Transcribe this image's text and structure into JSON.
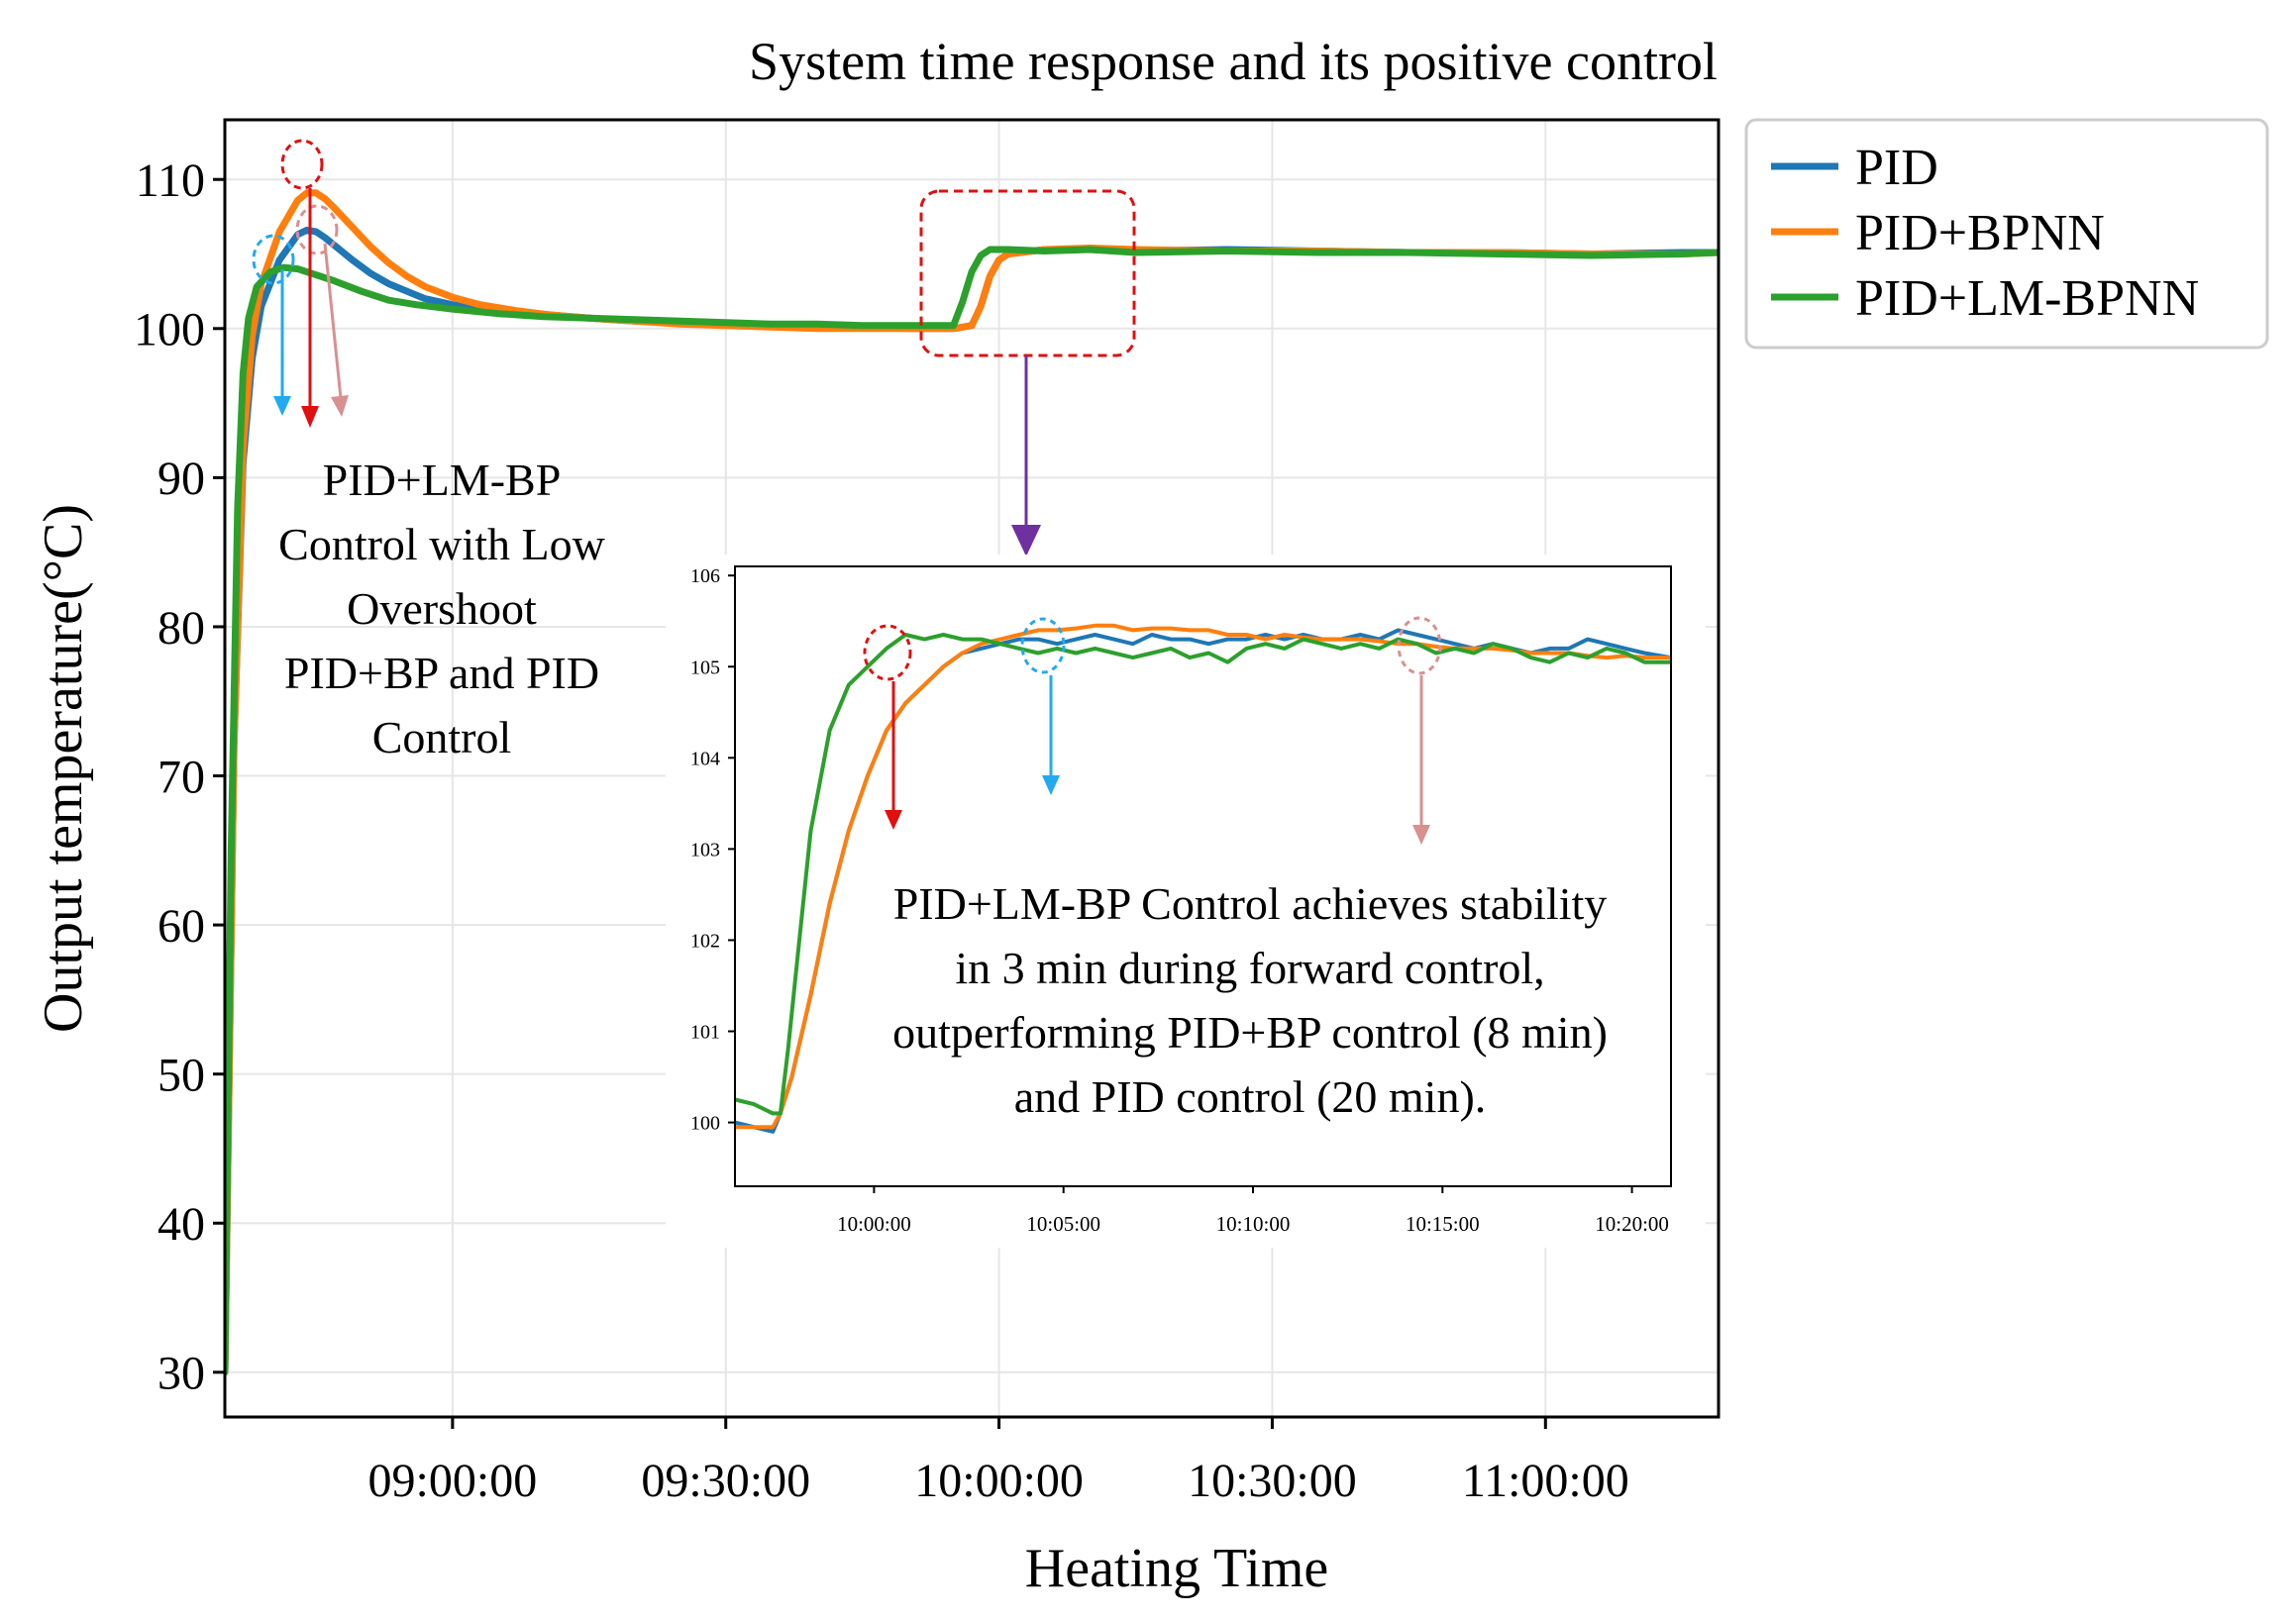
{
  "chart_data": [
    {
      "type": "line",
      "title": "System time response and its positive control",
      "xlabel": "Heating Time",
      "ylabel": "Output temperature(°C)",
      "x_unit": "minutes since 08:35:00",
      "xlim": [
        0,
        164
      ],
      "ylim": [
        27,
        114
      ],
      "yticks": [
        30,
        40,
        50,
        60,
        70,
        80,
        90,
        100,
        110
      ],
      "xticks": [
        {
          "x": 25,
          "label": "09:00:00"
        },
        {
          "x": 55,
          "label": "09:30:00"
        },
        {
          "x": 85,
          "label": "10:00:00"
        },
        {
          "x": 115,
          "label": "10:30:00"
        },
        {
          "x": 145,
          "label": "11:00:00"
        }
      ],
      "grid": true,
      "legend": {
        "position": "outside-top-right",
        "entries": [
          "PID",
          "PID+BPNN",
          "PID+LM-BPNN"
        ]
      },
      "series": [
        {
          "name": "PID",
          "color": "#1f77b4",
          "x": [
            0,
            1,
            2,
            3,
            4,
            6,
            8,
            9,
            10,
            11,
            12,
            14,
            16,
            18,
            20,
            22,
            25,
            28,
            32,
            36,
            40,
            45,
            50,
            55,
            60,
            65,
            70,
            75,
            80,
            82,
            83,
            84,
            85,
            86,
            90,
            95,
            100,
            110,
            120,
            130,
            140,
            150,
            160,
            164
          ],
          "y": [
            30,
            72,
            91,
            98,
            101.5,
            104.6,
            106.3,
            106.6,
            106.5,
            106.1,
            105.6,
            104.6,
            103.7,
            103,
            102.5,
            102,
            101.6,
            101.3,
            101.1,
            100.9,
            100.7,
            100.5,
            100.4,
            100.3,
            100.2,
            100.1,
            100.1,
            100,
            100,
            100.2,
            101.5,
            103.5,
            104.6,
            105,
            105.3,
            105.3,
            105.2,
            105.3,
            105.2,
            105.1,
            105.1,
            105,
            105.1,
            105.1
          ]
        },
        {
          "name": "PID+BPNN",
          "color": "#ff7f0e",
          "x": [
            0,
            1,
            2,
            3,
            4,
            6,
            8,
            9,
            10,
            11,
            12,
            14,
            16,
            18,
            20,
            22,
            25,
            28,
            32,
            36,
            40,
            45,
            50,
            55,
            60,
            65,
            70,
            75,
            80,
            82,
            83,
            84,
            85,
            86,
            90,
            95,
            100,
            110,
            120,
            130,
            140,
            150,
            160,
            164
          ],
          "y": [
            30,
            72,
            92,
            99.5,
            103,
            106.5,
            108.6,
            109.1,
            109.1,
            108.7,
            108.1,
            106.8,
            105.5,
            104.4,
            103.5,
            102.8,
            102.1,
            101.6,
            101.2,
            100.9,
            100.7,
            100.5,
            100.3,
            100.2,
            100.1,
            100,
            100,
            100,
            100,
            100.2,
            101.5,
            103.5,
            104.6,
            105,
            105.3,
            105.4,
            105.3,
            105.2,
            105.2,
            105.1,
            105.1,
            105,
            105,
            105.1
          ]
        },
        {
          "name": "PID+LM-BPNN",
          "color": "#2ca02c",
          "x": [
            0,
            0.7,
            1.4,
            2,
            2.6,
            3.5,
            5,
            6.5,
            8,
            10,
            12,
            15,
            18,
            21,
            25,
            30,
            35,
            40,
            45,
            50,
            55,
            60,
            65,
            70,
            75,
            80,
            81,
            82,
            83,
            84,
            86,
            90,
            95,
            100,
            110,
            120,
            130,
            140,
            150,
            160,
            164
          ],
          "y": [
            30,
            65,
            88,
            97,
            100.7,
            102.8,
            103.8,
            104.1,
            104,
            103.6,
            103.2,
            102.5,
            101.9,
            101.6,
            101.3,
            101,
            100.8,
            100.7,
            100.6,
            100.5,
            100.4,
            100.3,
            100.3,
            100.2,
            100.2,
            100.2,
            101.8,
            103.8,
            104.9,
            105.3,
            105.3,
            105.2,
            105.3,
            105.1,
            105.2,
            105.1,
            105.1,
            105,
            104.9,
            105,
            105.1
          ]
        }
      ],
      "annotations": [
        {
          "id": "overshoot_note",
          "lines": [
            "PID+LM-BP",
            "Control with Low",
            "Overshoot",
            "PID+BP and PID",
            "Control"
          ]
        }
      ]
    },
    {
      "type": "line",
      "inset": true,
      "xlabel": "",
      "ylabel": "",
      "x_unit": "minutes since 09:56:20",
      "xlim": [
        0,
        24.7
      ],
      "ylim": [
        99.3,
        106.1
      ],
      "yticks": [
        100,
        101,
        102,
        103,
        104,
        105,
        106
      ],
      "xticks": [
        {
          "x": 3.67,
          "label": "10:00:00"
        },
        {
          "x": 8.67,
          "label": "10:05:00"
        },
        {
          "x": 13.67,
          "label": "10:10:00"
        },
        {
          "x": 18.67,
          "label": "10:15:00"
        },
        {
          "x": 23.67,
          "label": "10:20:00"
        }
      ],
      "grid": false,
      "series": [
        {
          "name": "PID",
          "color": "#1f77b4",
          "x": [
            0,
            0.5,
            1,
            1.2,
            1.5,
            2,
            2.5,
            3,
            3.5,
            4,
            4.5,
            5,
            5.5,
            6,
            6.5,
            7,
            7.5,
            8,
            8.5,
            9,
            9.5,
            10,
            10.5,
            11,
            11.5,
            12,
            12.5,
            13,
            13.5,
            14,
            14.5,
            15,
            15.5,
            16,
            16.5,
            17,
            17.5,
            18,
            18.5,
            19,
            19.5,
            20,
            20.5,
            21,
            21.5,
            22,
            22.5,
            23,
            23.5,
            24,
            24.7
          ],
          "y": [
            100,
            99.95,
            99.9,
            100.1,
            100.5,
            101.4,
            102.4,
            103.2,
            103.8,
            104.3,
            104.6,
            104.8,
            105,
            105.15,
            105.2,
            105.25,
            105.3,
            105.3,
            105.25,
            105.3,
            105.35,
            105.3,
            105.25,
            105.35,
            105.3,
            105.3,
            105.25,
            105.3,
            105.3,
            105.35,
            105.3,
            105.35,
            105.3,
            105.3,
            105.35,
            105.3,
            105.4,
            105.35,
            105.3,
            105.25,
            105.2,
            105.25,
            105.2,
            105.15,
            105.2,
            105.2,
            105.3,
            105.25,
            105.2,
            105.15,
            105.1
          ]
        },
        {
          "name": "PID+BPNN",
          "color": "#ff7f0e",
          "x": [
            0,
            0.5,
            1,
            1.2,
            1.5,
            2,
            2.5,
            3,
            3.5,
            4,
            4.5,
            5,
            5.5,
            6,
            6.5,
            7,
            7.5,
            8,
            8.5,
            9,
            9.5,
            10,
            10.5,
            11,
            11.5,
            12,
            12.5,
            13,
            13.5,
            14,
            14.5,
            15,
            15.5,
            16,
            16.5,
            17,
            17.5,
            18,
            18.5,
            19,
            19.5,
            20,
            20.5,
            21,
            21.5,
            22,
            22.5,
            23,
            23.5,
            24,
            24.7
          ],
          "y": [
            99.95,
            99.95,
            99.95,
            100.1,
            100.5,
            101.4,
            102.4,
            103.2,
            103.8,
            104.3,
            104.6,
            104.8,
            105,
            105.15,
            105.25,
            105.3,
            105.35,
            105.4,
            105.4,
            105.42,
            105.45,
            105.45,
            105.4,
            105.42,
            105.42,
            105.4,
            105.4,
            105.35,
            105.35,
            105.3,
            105.35,
            105.32,
            105.3,
            105.3,
            105.3,
            105.28,
            105.25,
            105.25,
            105.22,
            105.2,
            105.2,
            105.2,
            105.18,
            105.15,
            105.15,
            105.15,
            105.12,
            105.1,
            105.12,
            105.1,
            105.1
          ]
        },
        {
          "name": "PID+LM-BPNN",
          "color": "#2ca02c",
          "x": [
            0,
            0.5,
            1,
            1.2,
            1.4,
            1.7,
            2,
            2.5,
            3,
            3.5,
            4,
            4.5,
            5,
            5.5,
            6,
            6.5,
            7,
            7.5,
            8,
            8.5,
            9,
            9.5,
            10,
            10.5,
            11,
            11.5,
            12,
            12.5,
            13,
            13.5,
            14,
            14.5,
            15,
            15.5,
            16,
            16.5,
            17,
            17.5,
            18,
            18.5,
            19,
            19.5,
            20,
            20.5,
            21,
            21.5,
            22,
            22.5,
            23,
            23.5,
            24,
            24.7
          ],
          "y": [
            100.25,
            100.2,
            100.1,
            100.1,
            100.8,
            102,
            103.2,
            104.3,
            104.8,
            105,
            105.2,
            105.35,
            105.3,
            105.35,
            105.3,
            105.3,
            105.25,
            105.2,
            105.15,
            105.2,
            105.15,
            105.2,
            105.15,
            105.1,
            105.15,
            105.2,
            105.1,
            105.15,
            105.05,
            105.2,
            105.25,
            105.2,
            105.3,
            105.25,
            105.2,
            105.25,
            105.2,
            105.3,
            105.25,
            105.15,
            105.2,
            105.15,
            105.25,
            105.2,
            105.1,
            105.05,
            105.15,
            105.1,
            105.2,
            105.15,
            105.05,
            105.05
          ]
        }
      ],
      "annotations": [
        {
          "id": "stability_note",
          "lines": [
            "PID+LM-BP Control achieves stability",
            "in 3 min during forward control,",
            "outperforming PID+BP control (8 min)",
            "and PID control (20 min)."
          ]
        }
      ]
    }
  ]
}
